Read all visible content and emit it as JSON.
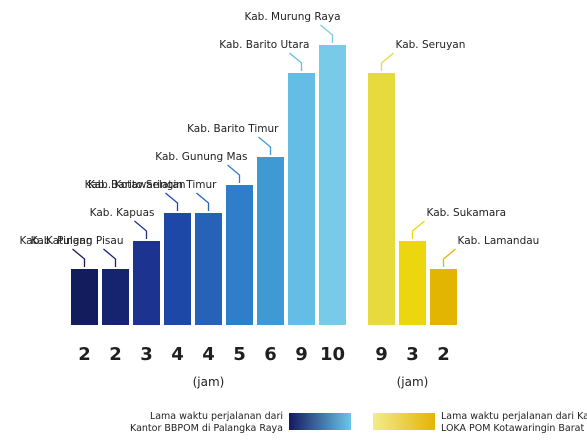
{
  "chart_data": {
    "type": "bar",
    "categories": [
      "Kab. Katingan",
      "Kab. Pulang Pisau",
      "Kab. Kapuas",
      "Kab. Barito Selatan",
      "Kab. Kotawaringin Timur",
      "Kab. Gunung Mas",
      "Kab. Barito Timur",
      "Kab. Barito Utara",
      "Kab. Murung Raya",
      "Kab. Seruyan",
      "Kab. Sukamara",
      "Kab. Lamandau"
    ],
    "values": [
      2,
      2,
      3,
      4,
      4,
      5,
      6,
      9,
      10,
      9,
      3,
      2
    ],
    "groups": [
      {
        "name": "Lama waktu perjalanan dari Kantor BBPOM di Palangka Raya",
        "legend_lines": [
          "Lama waktu perjalanan dari",
          "Kantor BBPOM di Palangka Raya"
        ],
        "unit_label": "(jam)",
        "bar_colors": [
          "#131c5c",
          "#16236f",
          "#1c3490",
          "#1e48a8",
          "#2662b8",
          "#2f7ec9",
          "#3f99d3",
          "#63bde4",
          "#77cbe9"
        ],
        "gradient": [
          "#141a5e",
          "#6cc6e8"
        ]
      },
      {
        "name": "Lama waktu perjalanan dari Kantor LOKA POM Kotawaringin Barat",
        "legend_lines": [
          "Lama waktu perjalanan dari Kantor",
          "LOKA POM Kotawaringin Barat"
        ],
        "unit_label": "(jam)",
        "bar_colors": [
          "#e6da3e",
          "#ecd60e",
          "#e2b503"
        ],
        "gradient": [
          "#f3ec8c",
          "#e2b503"
        ]
      }
    ],
    "ylim": [
      0,
      10
    ],
    "grid": false,
    "legend_position": "bottom"
  }
}
